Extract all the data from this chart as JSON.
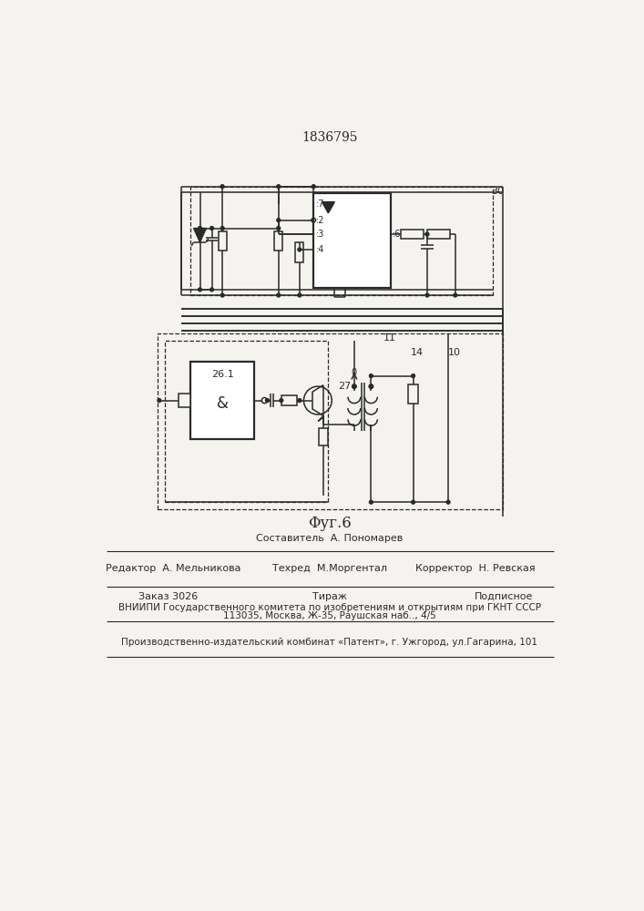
{
  "title": "1836795",
  "fig_label": "Φуг.6",
  "background": "#f5f3f0",
  "line_color": "#2a2a2a",
  "title_fontsize": 10,
  "footer": {
    "sostavitel": "Составитель  А. Пономарев",
    "tehred": "Техред  М.Моргентал",
    "korrektor": "Корректор  Н. Ревская",
    "redaktor": "Редактор  А. Мельникова",
    "zakaz": "Заказ 3026",
    "tirazh": "Тираж",
    "podpisnoe": "Подписное",
    "vniipи": "ВНИИПИ Государственного комитета по изобретениям и открытиям при ГКНТ СССР",
    "address": "113035, Москва, Ж-35, Раушская наб.., 4/5",
    "patent": "Производственно-издательский комбинат «Патент», г. Ужгород, ул.Гагарина, 101"
  }
}
